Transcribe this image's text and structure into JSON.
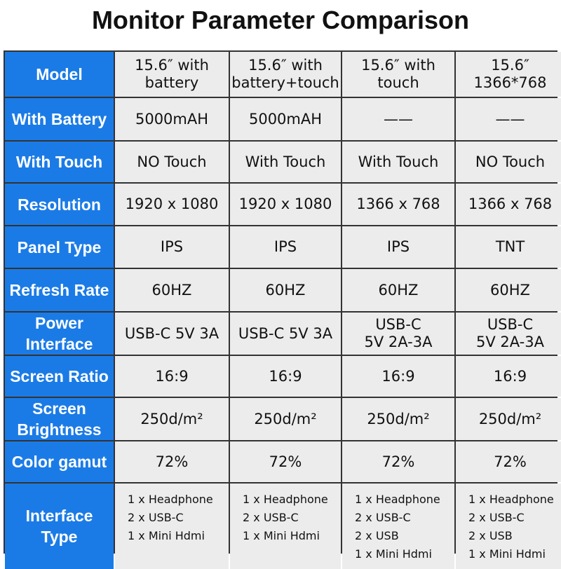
{
  "title": "Monitor Parameter Comparison",
  "table": {
    "rows": [
      {
        "label": [
          "Model"
        ],
        "cells": [
          [
            "15.6″  with",
            "battery"
          ],
          [
            "15.6″  with",
            "battery+touch"
          ],
          [
            "15.6″  with",
            "touch"
          ],
          [
            "15.6″",
            "1366*768"
          ]
        ]
      },
      {
        "label": [
          "With Battery"
        ],
        "cells": [
          [
            "5000mAH"
          ],
          [
            "5000mAH"
          ],
          [
            "——"
          ],
          [
            "——"
          ]
        ]
      },
      {
        "label": [
          "With Touch"
        ],
        "cells": [
          [
            "NO Touch"
          ],
          [
            "With Touch"
          ],
          [
            "With Touch"
          ],
          [
            "NO Touch"
          ]
        ]
      },
      {
        "label": [
          "Resolution"
        ],
        "cells": [
          [
            "1920 x 1080"
          ],
          [
            "1920 x 1080"
          ],
          [
            "1366 x 768"
          ],
          [
            "1366 x 768"
          ]
        ]
      },
      {
        "label": [
          "Panel Type"
        ],
        "cells": [
          [
            "IPS"
          ],
          [
            "IPS"
          ],
          [
            "IPS"
          ],
          [
            "TNT"
          ]
        ]
      },
      {
        "label": [
          "Refresh Rate"
        ],
        "cells": [
          [
            "60HZ"
          ],
          [
            "60HZ"
          ],
          [
            "60HZ"
          ],
          [
            "60HZ"
          ]
        ]
      },
      {
        "label": [
          "Power",
          "Interface"
        ],
        "cells": [
          [
            "USB-C  5V 3A"
          ],
          [
            "USB-C  5V 3A"
          ],
          [
            "USB-C",
            "5V 2A-3A"
          ],
          [
            "USB-C",
            "5V 2A-3A"
          ]
        ]
      },
      {
        "label": [
          "Screen Ratio"
        ],
        "cells": [
          [
            "16:9"
          ],
          [
            "16:9"
          ],
          [
            "16:9"
          ],
          [
            "16:9"
          ]
        ]
      },
      {
        "label": [
          "Screen",
          "Brightness"
        ],
        "cells": [
          [
            "250d/m²"
          ],
          [
            "250d/m²"
          ],
          [
            "250d/m²"
          ],
          [
            "250d/m²"
          ]
        ]
      },
      {
        "label": [
          "Color gamut"
        ],
        "cells": [
          [
            "72%"
          ],
          [
            "72%"
          ],
          [
            "72%"
          ],
          [
            "72%"
          ]
        ]
      },
      {
        "label": [
          "Interface",
          "Type"
        ],
        "cells": [
          [
            "1 x Headphone",
            "2 x USB-C",
            "1 x Mini Hdmi"
          ],
          [
            "1 x Headphone",
            "2 x USB-C",
            "1 x Mini Hdmi"
          ],
          [
            "1 x Headphone",
            "2 x USB-C",
            "2 x USB",
            "1 x Mini Hdmi"
          ],
          [
            "1 x Headphone",
            "2 x USB-C",
            "2 x USB",
            "1 x Mini Hdmi"
          ]
        ]
      }
    ]
  }
}
